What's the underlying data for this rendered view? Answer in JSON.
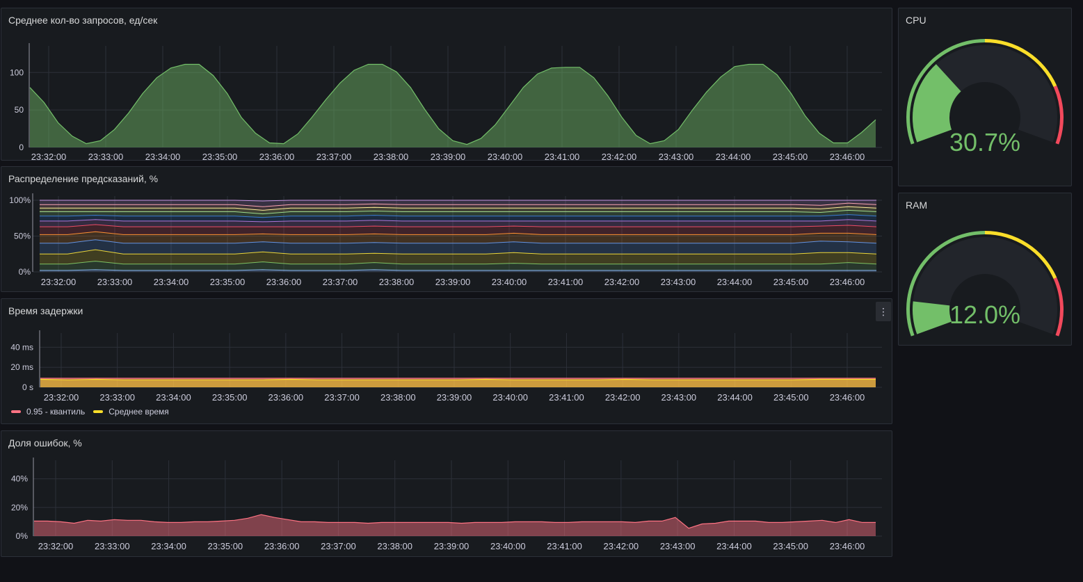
{
  "colors": {
    "green": "#73bf69",
    "yellow": "#fade2a",
    "orange": "#e0b400",
    "red": "#f2495c",
    "pink": "#ff7383"
  },
  "panels": {
    "requests": {
      "title": "Среднее кол-во запросов, ед/сек"
    },
    "predictions": {
      "title": "Распределение предсказаний, %"
    },
    "latency": {
      "title": "Время задержки",
      "menu_icon": "more-vertical-icon",
      "legend": [
        {
          "label": "0.95 - квантиль",
          "color": "#ff7383"
        },
        {
          "label": "Среднее время",
          "color": "#fade2a"
        }
      ]
    },
    "errors": {
      "title": "Доля ошибок, %"
    },
    "cpu": {
      "title": "CPU",
      "value_text": "30.7%"
    },
    "ram": {
      "title": "RAM",
      "value_text": "12.0%"
    }
  },
  "chart_data": [
    {
      "id": "requests",
      "type": "area",
      "title": "Среднее кол-во запросов, ед/сек",
      "x_start": "23:31:30",
      "x_step_seconds": 15,
      "x_ticks": [
        "23:32:00",
        "23:33:00",
        "23:34:00",
        "23:35:00",
        "23:36:00",
        "23:37:00",
        "23:38:00",
        "23:39:00",
        "23:40:00",
        "23:41:00",
        "23:42:00",
        "23:43:00",
        "23:44:00",
        "23:45:00",
        "23:46:00"
      ],
      "y_ticks": [
        "0",
        "50",
        "100"
      ],
      "ylim": [
        0,
        130
      ],
      "grid": true,
      "series": [
        {
          "color": "#73bf69",
          "values": [
            80,
            60,
            33,
            15,
            5,
            9,
            24,
            46,
            72,
            93,
            106,
            111,
            111,
            96,
            72,
            40,
            19,
            6,
            5,
            18,
            40,
            64,
            86,
            103,
            111,
            111,
            101,
            80,
            51,
            25,
            9,
            4,
            12,
            30,
            55,
            80,
            98,
            106,
            107,
            107,
            93,
            69,
            40,
            16,
            5,
            9,
            24,
            50,
            74,
            94,
            108,
            111,
            111,
            97,
            72,
            42,
            19,
            6,
            6,
            20,
            37
          ]
        }
      ]
    },
    {
      "id": "predictions",
      "type": "area",
      "title": "Распределение предсказаний, %",
      "x_start": "23:31:30",
      "x_step_seconds": 60,
      "x_ticks": [
        "23:32:00",
        "23:33:00",
        "23:34:00",
        "23:35:00",
        "23:36:00",
        "23:37:00",
        "23:38:00",
        "23:39:00",
        "23:40:00",
        "23:41:00",
        "23:42:00",
        "23:43:00",
        "23:44:00",
        "23:45:00",
        "23:46:00"
      ],
      "y_ticks": [
        "0%",
        "50%",
        "100%"
      ],
      "ylim": [
        0,
        100
      ],
      "stacked": true,
      "series": [
        {
          "color": "#8ab8ff",
          "values": [
            2,
            2,
            3,
            2,
            2,
            2,
            2,
            2,
            3,
            2,
            2,
            2,
            3,
            2,
            2,
            2,
            2,
            2,
            2,
            2,
            2,
            2,
            2,
            2,
            2,
            2,
            2,
            2,
            2,
            2,
            2
          ]
        },
        {
          "color": "#73bf69",
          "values": [
            9,
            9,
            12,
            9,
            9,
            9,
            9,
            9,
            11,
            9,
            9,
            9,
            10,
            9,
            9,
            9,
            9,
            10,
            9,
            9,
            9,
            9,
            9,
            9,
            9,
            9,
            9,
            9,
            9,
            11,
            9
          ]
        },
        {
          "color": "#fade2a",
          "values": [
            14,
            14,
            16,
            14,
            14,
            14,
            14,
            14,
            14,
            14,
            14,
            14,
            13,
            14,
            14,
            14,
            14,
            15,
            14,
            14,
            14,
            14,
            14,
            14,
            14,
            14,
            14,
            14,
            16,
            14,
            14
          ]
        },
        {
          "color": "#5794f2",
          "values": [
            15,
            15,
            14,
            15,
            15,
            15,
            15,
            15,
            14,
            15,
            15,
            15,
            15,
            15,
            15,
            15,
            15,
            15,
            15,
            15,
            15,
            15,
            15,
            15,
            15,
            15,
            15,
            15,
            16,
            15,
            15
          ]
        },
        {
          "color": "#ff9830",
          "values": [
            12,
            12,
            11,
            12,
            12,
            12,
            12,
            12,
            11,
            12,
            12,
            12,
            12,
            12,
            12,
            12,
            12,
            12,
            12,
            12,
            12,
            12,
            12,
            12,
            12,
            12,
            12,
            12,
            11,
            12,
            12
          ]
        },
        {
          "color": "#f2495c",
          "values": [
            11,
            11,
            10,
            11,
            11,
            11,
            11,
            11,
            10,
            11,
            11,
            11,
            11,
            11,
            11,
            11,
            11,
            10,
            11,
            11,
            11,
            11,
            11,
            11,
            11,
            11,
            11,
            11,
            10,
            11,
            11
          ]
        },
        {
          "color": "#b877d9",
          "values": [
            8,
            8,
            7,
            8,
            8,
            8,
            8,
            8,
            7,
            8,
            8,
            8,
            8,
            8,
            8,
            8,
            8,
            7,
            8,
            8,
            8,
            8,
            8,
            8,
            8,
            8,
            8,
            8,
            7,
            8,
            8
          ]
        },
        {
          "color": "#3274d9",
          "values": [
            7,
            7,
            6,
            7,
            7,
            7,
            7,
            7,
            6,
            7,
            7,
            7,
            7,
            7,
            7,
            7,
            7,
            7,
            7,
            7,
            7,
            7,
            7,
            7,
            7,
            7,
            7,
            7,
            7,
            7,
            7
          ]
        },
        {
          "color": "#96d98d",
          "values": [
            6,
            6,
            5,
            6,
            6,
            6,
            6,
            6,
            5,
            6,
            6,
            6,
            6,
            6,
            6,
            6,
            6,
            6,
            6,
            6,
            6,
            6,
            6,
            6,
            6,
            6,
            6,
            6,
            5,
            6,
            6
          ]
        },
        {
          "color": "#fff899",
          "values": [
            5,
            5,
            5,
            5,
            5,
            5,
            5,
            5,
            5,
            5,
            5,
            5,
            5,
            5,
            5,
            5,
            5,
            5,
            5,
            5,
            5,
            5,
            5,
            5,
            5,
            5,
            5,
            5,
            5,
            5,
            5
          ]
        },
        {
          "color": "#ffa6b0",
          "values": [
            5,
            5,
            5,
            5,
            5,
            5,
            5,
            5,
            5,
            5,
            5,
            5,
            5,
            5,
            5,
            5,
            5,
            5,
            5,
            5,
            5,
            5,
            5,
            5,
            5,
            5,
            5,
            5,
            5,
            5,
            5
          ]
        },
        {
          "color": "#ca95e5",
          "values": [
            6,
            6,
            6,
            6,
            6,
            6,
            6,
            6,
            8,
            6,
            6,
            6,
            5,
            6,
            6,
            6,
            6,
            6,
            6,
            6,
            6,
            6,
            6,
            6,
            6,
            6,
            6,
            6,
            8,
            6,
            6
          ]
        }
      ]
    },
    {
      "id": "latency",
      "type": "area",
      "title": "Время задержки",
      "x_start": "23:31:30",
      "x_step_seconds": 60,
      "x_ticks": [
        "23:32:00",
        "23:33:00",
        "23:34:00",
        "23:35:00",
        "23:36:00",
        "23:37:00",
        "23:38:00",
        "23:39:00",
        "23:40:00",
        "23:41:00",
        "23:42:00",
        "23:43:00",
        "23:44:00",
        "23:45:00",
        "23:46:00"
      ],
      "y_ticks": [
        "0 s",
        "20 ms",
        "40 ms"
      ],
      "ylim": [
        0,
        50
      ],
      "series": [
        {
          "name": "0.95 - квантиль",
          "color": "#ff7383",
          "values": [
            9,
            9,
            9,
            9,
            9,
            9,
            9,
            9,
            9,
            9,
            9,
            9,
            9,
            9,
            9,
            9,
            9,
            9,
            9,
            9,
            9,
            9,
            9,
            9,
            9,
            9,
            9,
            9,
            9,
            9,
            9
          ]
        },
        {
          "name": "Среднее время",
          "color": "#fade2a",
          "values": [
            8,
            7.5,
            8,
            7.5,
            7.5,
            7.5,
            7.5,
            7.5,
            7.5,
            8,
            7.5,
            7.5,
            7.5,
            7.5,
            7.5,
            7.5,
            8,
            7.5,
            7.5,
            7.5,
            7.5,
            8,
            7.5,
            7.5,
            7.5,
            7.5,
            7.5,
            7.5,
            8,
            8,
            8
          ]
        }
      ]
    },
    {
      "id": "errors",
      "type": "area",
      "title": "Доля ошибок, %",
      "x_start": "23:31:30",
      "x_step_seconds": 15,
      "x_ticks": [
        "23:32:00",
        "23:33:00",
        "23:34:00",
        "23:35:00",
        "23:36:00",
        "23:37:00",
        "23:38:00",
        "23:39:00",
        "23:40:00",
        "23:41:00",
        "23:42:00",
        "23:43:00",
        "23:44:00",
        "23:45:00",
        "23:46:00"
      ],
      "y_ticks": [
        "0%",
        "20%",
        "40%"
      ],
      "ylim": [
        0,
        50
      ],
      "grid": true,
      "series": [
        {
          "color": "#ff7383",
          "values": [
            10.5,
            10.5,
            10,
            9,
            11,
            10.5,
            11.5,
            11,
            11,
            10,
            9.5,
            9.5,
            10,
            10,
            10.5,
            11,
            12.5,
            15,
            13,
            11.5,
            10,
            10,
            9.5,
            9.5,
            9.5,
            9,
            9.5,
            9.5,
            9.5,
            9.5,
            9.5,
            9.5,
            9,
            9.5,
            9.5,
            9.5,
            10,
            10,
            10,
            9.5,
            9.5,
            10,
            10,
            10,
            10,
            9.5,
            10.5,
            10.5,
            13,
            5.5,
            8.5,
            9,
            10.5,
            10.5,
            10.5,
            9.5,
            9.5,
            10,
            10.5,
            11,
            9.5,
            11.5,
            9.5,
            9.5
          ]
        }
      ]
    },
    {
      "id": "cpu",
      "type": "gauge",
      "title": "CPU",
      "value": 30.7,
      "unit": "%",
      "min": 0,
      "max": 100,
      "thresholds": [
        {
          "from": 0,
          "color": "#73bf69"
        },
        {
          "from": 50,
          "color": "#fade2a"
        },
        {
          "from": 80,
          "color": "#f2495c"
        }
      ]
    },
    {
      "id": "ram",
      "type": "gauge",
      "title": "RAM",
      "value": 12.0,
      "unit": "%",
      "min": 0,
      "max": 100,
      "thresholds": [
        {
          "from": 0,
          "color": "#73bf69"
        },
        {
          "from": 50,
          "color": "#fade2a"
        },
        {
          "from": 80,
          "color": "#f2495c"
        }
      ]
    }
  ]
}
